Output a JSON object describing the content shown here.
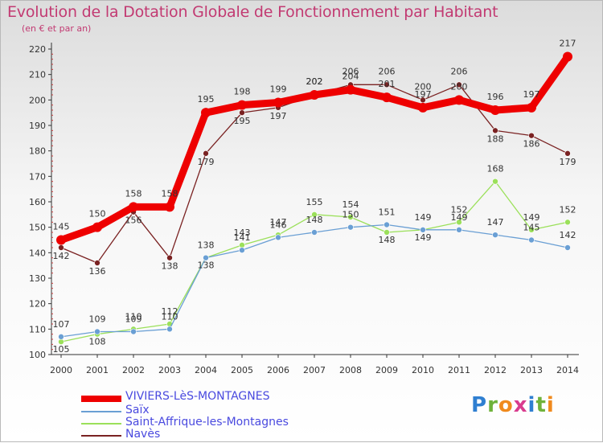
{
  "title": "Evolution de la Dotation Globale de Fonctionnement par Habitant",
  "subtitle": "(en € et par an)",
  "logo": {
    "text": "Proxiti",
    "letters": [
      {
        "ch": "P",
        "color": "#2f7fd1"
      },
      {
        "ch": "r",
        "color": "#6fb23a"
      },
      {
        "ch": "o",
        "color": "#f08a1d"
      },
      {
        "ch": "x",
        "color": "#d93c8e"
      },
      {
        "ch": "i",
        "color": "#2f7fd1"
      },
      {
        "ch": "t",
        "color": "#6fb23a"
      },
      {
        "ch": "i",
        "color": "#f08a1d"
      }
    ]
  },
  "chart_data": {
    "type": "line",
    "title": "Evolution de la Dotation Globale de Fonctionnement par Habitant",
    "subtitle": "(en € et par an)",
    "x": [
      2000,
      2001,
      2002,
      2003,
      2004,
      2005,
      2006,
      2007,
      2008,
      2009,
      2010,
      2011,
      2012,
      2013,
      2014
    ],
    "ylim": [
      100,
      220
    ],
    "yticks": [
      100,
      110,
      120,
      130,
      140,
      150,
      160,
      170,
      180,
      190,
      200,
      210,
      220
    ],
    "grid": false,
    "legend_position": "bottom",
    "series": [
      {
        "name": "VIVIERS-LèS-MONTAGNES",
        "color": "#ee0000",
        "width": 9,
        "values": [
          145,
          150,
          158,
          158,
          195,
          198,
          199,
          202,
          204,
          201,
          197,
          200,
          196,
          197,
          217
        ]
      },
      {
        "name": "Saïx",
        "color": "#6a9fd4",
        "width": 1.3,
        "values": [
          107,
          109,
          109,
          110,
          138,
          141,
          146,
          148,
          150,
          151,
          149,
          149,
          147,
          145,
          142
        ]
      },
      {
        "name": "Saint-Affrique-les-Montagnes",
        "color": "#9be05a",
        "width": 1.3,
        "values": [
          105,
          108,
          110,
          112,
          138,
          143,
          147,
          155,
          154,
          148,
          149,
          152,
          168,
          149,
          152
        ]
      },
      {
        "name": "Navès",
        "color": "#7a2222",
        "width": 1.3,
        "values": [
          142,
          136,
          156,
          138,
          179,
          195,
          197,
          202,
          206,
          206,
          200,
          206,
          188,
          186,
          179
        ]
      }
    ]
  }
}
